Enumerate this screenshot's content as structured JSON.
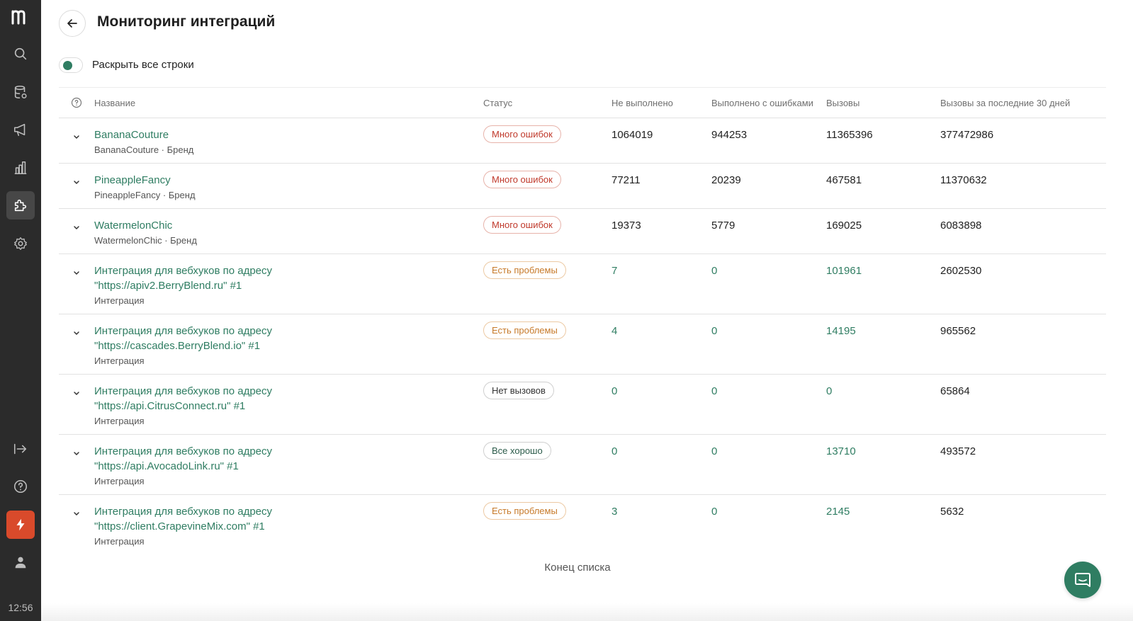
{
  "sidebar": {
    "logo": "m",
    "items": [
      {
        "icon": "search-icon"
      },
      {
        "icon": "database-icon"
      },
      {
        "icon": "megaphone-icon"
      },
      {
        "icon": "chart-icon"
      },
      {
        "icon": "puzzle-icon",
        "active": true
      },
      {
        "icon": "gear-icon"
      }
    ],
    "bottom": [
      {
        "icon": "logout-icon"
      },
      {
        "icon": "help-icon"
      },
      {
        "icon": "lightning-icon"
      },
      {
        "icon": "user-icon"
      }
    ],
    "time": "12:56"
  },
  "header": {
    "title": "Мониторинг интеграций"
  },
  "toggle": {
    "label": "Раскрыть все строки",
    "on": true
  },
  "table": {
    "columns": {
      "name": "Название",
      "status": "Статус",
      "not_done": "Не выполнено",
      "with_errors": "Выполнено с ошибками",
      "calls": "Вызовы",
      "calls_30": "Вызовы за последние 30 дней"
    },
    "rows": [
      {
        "name": "BananaCouture",
        "sub": "BananaCouture · Бренд",
        "status": "Много ошибок",
        "status_color": "red",
        "not_done": "1064019",
        "with_errors": "944253",
        "calls": "11365396",
        "calls_30": "377472986"
      },
      {
        "name": "PineappleFancy",
        "sub": "PineappleFancy · Бренд",
        "status": "Много ошибок",
        "status_color": "red",
        "not_done": "77211",
        "with_errors": "20239",
        "calls": "467581",
        "calls_30": "11370632"
      },
      {
        "name": "WatermelonChic",
        "sub": "WatermelonChic · Бренд",
        "status": "Много ошибок",
        "status_color": "red",
        "not_done": "19373",
        "with_errors": "5779",
        "calls": "169025",
        "calls_30": "6083898"
      },
      {
        "name": "Интеграция для вебхуков по адресу \"https://apiv2.BerryBlend.ru\" #1",
        "sub": "Интеграция",
        "status": "Есть проблемы",
        "status_color": "orange",
        "not_done": "7",
        "with_errors": "0",
        "calls": "101961",
        "calls_30": "2602530"
      },
      {
        "name": "Интеграция для вебхуков по адресу \"https://cascades.BerryBlend.io\" #1",
        "sub": "Интеграция",
        "status": "Есть проблемы",
        "status_color": "orange",
        "not_done": "4",
        "with_errors": "0",
        "calls": "14195",
        "calls_30": "965562"
      },
      {
        "name": "Интеграция для вебхуков по адресу \"https://api.CitrusConnect.ru\" #1",
        "sub": "Интеграция",
        "status": "Нет вызовов",
        "status_color": "gray",
        "not_done": "0",
        "with_errors": "0",
        "calls": "0",
        "calls_30": "65864"
      },
      {
        "name": "Интеграция для вебхуков по адресу \"https://api.AvocadoLink.ru\" #1",
        "sub": "Интеграция",
        "status": "Все хорошо",
        "status_color": "green",
        "not_done": "0",
        "with_errors": "0",
        "calls": "13710",
        "calls_30": "493572"
      },
      {
        "name": "Интеграция для вебхуков по адресу \"https://client.GrapevineMix.com\" #1",
        "sub": "Интеграция",
        "status": "Есть проблемы",
        "status_color": "orange",
        "not_done": "3",
        "with_errors": "0",
        "calls": "2145",
        "calls_30": "5632"
      }
    ]
  },
  "footer": {
    "end_label": "Конец списка"
  },
  "chat": {
    "icon": "chat-icon"
  },
  "colors": {
    "accent": "#2f7d62",
    "sidebar_bg": "#2b2b2b",
    "danger": "#c0392b",
    "warning": "#c77a2a",
    "power": "#d94a2b"
  }
}
